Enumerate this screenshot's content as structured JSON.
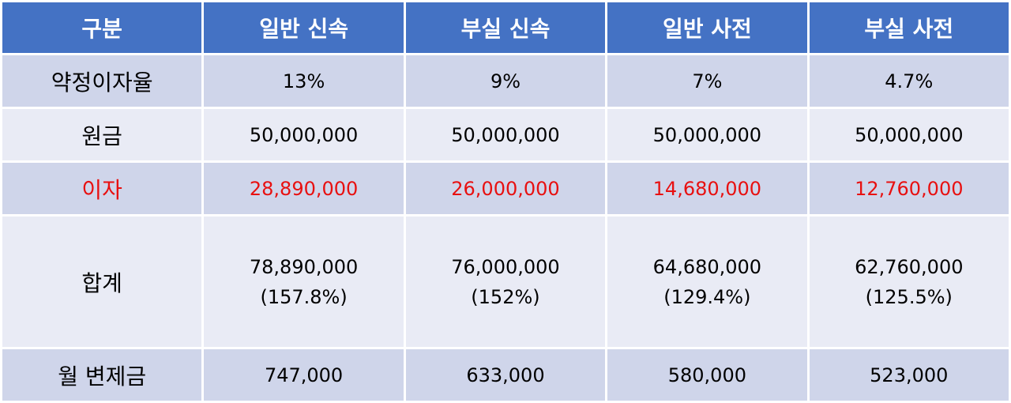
{
  "headers": [
    "구분",
    "일반 신속",
    "부실 신속",
    "일반 사전",
    "부실 사전"
  ],
  "rows": [
    {
      "label": "약정이자율",
      "cells": [
        {
          "line1": "13%",
          "line2": ""
        },
        {
          "line1": "9%",
          "line2": ""
        },
        {
          "line1": "7%",
          "line2": ""
        },
        {
          "line1": "4.7%",
          "line2": ""
        }
      ]
    },
    {
      "label": "원금",
      "cells": [
        {
          "line1": "50,000,000",
          "line2": ""
        },
        {
          "line1": "50,000,000",
          "line2": ""
        },
        {
          "line1": "50,000,000",
          "line2": ""
        },
        {
          "line1": "50,000,000",
          "line2": ""
        }
      ]
    },
    {
      "label": "이자",
      "cells": [
        {
          "line1": "28,890,000",
          "line2": ""
        },
        {
          "line1": "26,000,000",
          "line2": ""
        },
        {
          "line1": "14,680,000",
          "line2": ""
        },
        {
          "line1": "12,760,000",
          "line2": ""
        }
      ]
    },
    {
      "label": "합계",
      "cells": [
        {
          "line1": "78,890,000",
          "line2": "(157.8%)"
        },
        {
          "line1": "76,000,000",
          "line2": "(152%)"
        },
        {
          "line1": "64,680,000",
          "line2": "(129.4%)"
        },
        {
          "line1": "62,760,000",
          "line2": "(125.5%)"
        }
      ]
    },
    {
      "label": "월 변제금",
      "cells": [
        {
          "line1": "747,000",
          "line2": ""
        },
        {
          "line1": "633,000",
          "line2": ""
        },
        {
          "line1": "580,000",
          "line2": ""
        },
        {
          "line1": "523,000",
          "line2": ""
        }
      ]
    }
  ],
  "colors": {
    "header_bg": "#4472c4",
    "header_text": "#ffffff",
    "row_odd": "#cfd5ea",
    "row_even": "#e9ebf5",
    "highlight_text": "#e81010"
  }
}
